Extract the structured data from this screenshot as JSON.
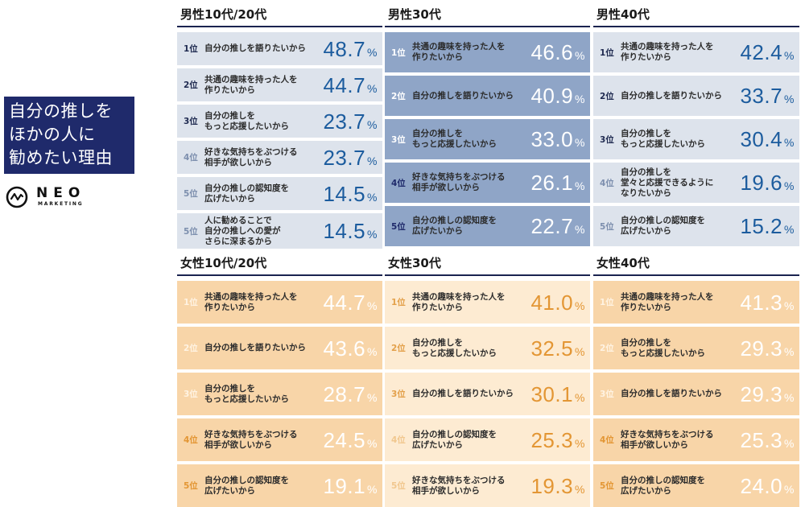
{
  "title": {
    "lines": [
      "自分の推しを",
      "ほかの人に",
      "勧めたい理由"
    ]
  },
  "logo": {
    "icon": "wave-circle-icon",
    "word": "NEO",
    "sub": "MARKETING"
  },
  "colors": {
    "navy": "#1f2a6b",
    "male_light_bg": "#dde3ec",
    "male_dark_bg": "#8fa5c7",
    "male_value": "#1c5c9e",
    "female_strong_bg": "#f8d5a8",
    "female_light_bg": "#fdebd2",
    "female_value": "#e39634"
  },
  "chart_data": {
    "type": "table",
    "title": "自分の推しをほかの人に勧めたい理由",
    "unit": "%",
    "panels": [
      {
        "name": "男性10代/20代",
        "rows": [
          {
            "rank": "1位",
            "reason": "自分の推しを語りたいから",
            "value": 48.7
          },
          {
            "rank": "2位",
            "reason": "共通の趣味を持った人を\n作りたいから",
            "value": 44.7
          },
          {
            "rank": "3位",
            "reason": "自分の推しを\nもっと応援したいから",
            "value": 23.7
          },
          {
            "rank": "4位",
            "reason": "好きな気持ちをぶつける\n相手が欲しいから",
            "value": 23.7
          },
          {
            "rank": "5位",
            "reason": "自分の推しの認知度を\n広げたいから",
            "value": 14.5
          },
          {
            "rank": "5位",
            "reason": "人に勧めることで\n自分の推しへの愛が\nさらに深まるから",
            "value": 14.5
          }
        ]
      },
      {
        "name": "男性30代",
        "rows": [
          {
            "rank": "1位",
            "reason": "共通の趣味を持った人を\n作りたいから",
            "value": 46.6
          },
          {
            "rank": "2位",
            "reason": "自分の推しを語りたいから",
            "value": 40.9
          },
          {
            "rank": "3位",
            "reason": "自分の推しを\nもっと応援したいから",
            "value": 33.0
          },
          {
            "rank": "4位",
            "reason": "好きな気持ちをぶつける\n相手が欲しいから",
            "value": 26.1
          },
          {
            "rank": "5位",
            "reason": "自分の推しの認知度を\n広げたいから",
            "value": 22.7
          }
        ]
      },
      {
        "name": "男性40代",
        "rows": [
          {
            "rank": "1位",
            "reason": "共通の趣味を持った人を\n作りたいから",
            "value": 42.4
          },
          {
            "rank": "2位",
            "reason": "自分の推しを語りたいから",
            "value": 33.7
          },
          {
            "rank": "3位",
            "reason": "自分の推しを\nもっと応援したいから",
            "value": 30.4
          },
          {
            "rank": "4位",
            "reason": "自分の推しを\n堂々と応援できるように\nなりたいから",
            "value": 19.6
          },
          {
            "rank": "5位",
            "reason": "自分の推しの認知度を\n広げたいから",
            "value": 15.2
          }
        ]
      },
      {
        "name": "女性10代/20代",
        "rows": [
          {
            "rank": "1位",
            "reason": "共通の趣味を持った人を\n作りたいから",
            "value": 44.7
          },
          {
            "rank": "2位",
            "reason": "自分の推しを語りたいから",
            "value": 43.6
          },
          {
            "rank": "3位",
            "reason": "自分の推しを\nもっと応援したいから",
            "value": 28.7
          },
          {
            "rank": "4位",
            "reason": "好きな気持ちをぶつける\n相手が欲しいから",
            "value": 24.5
          },
          {
            "rank": "5位",
            "reason": "自分の推しの認知度を\n広げたいから",
            "value": 19.1
          }
        ]
      },
      {
        "name": "女性30代",
        "rows": [
          {
            "rank": "1位",
            "reason": "共通の趣味を持った人を\n作りたいから",
            "value": 41.0
          },
          {
            "rank": "2位",
            "reason": "自分の推しを\nもっと応援したいから",
            "value": 32.5
          },
          {
            "rank": "3位",
            "reason": "自分の推しを語りたいから",
            "value": 30.1
          },
          {
            "rank": "4位",
            "reason": "自分の推しの認知度を\n広げたいから",
            "value": 25.3
          },
          {
            "rank": "5位",
            "reason": "好きな気持ちをぶつける\n相手が欲しいから",
            "value": 19.3
          }
        ]
      },
      {
        "name": "女性40代",
        "rows": [
          {
            "rank": "1位",
            "reason": "共通の趣味を持った人を\n作りたいから",
            "value": 41.3
          },
          {
            "rank": "2位",
            "reason": "自分の推しを\nもっと応援したいから",
            "value": 29.3
          },
          {
            "rank": "3位",
            "reason": "自分の推しを語りたいから",
            "value": 29.3
          },
          {
            "rank": "4位",
            "reason": "好きな気持ちをぶつける\n相手が欲しいから",
            "value": 25.3
          },
          {
            "rank": "5位",
            "reason": "自分の推しの認知度を\n広げたいから",
            "value": 24.0
          }
        ]
      }
    ]
  }
}
